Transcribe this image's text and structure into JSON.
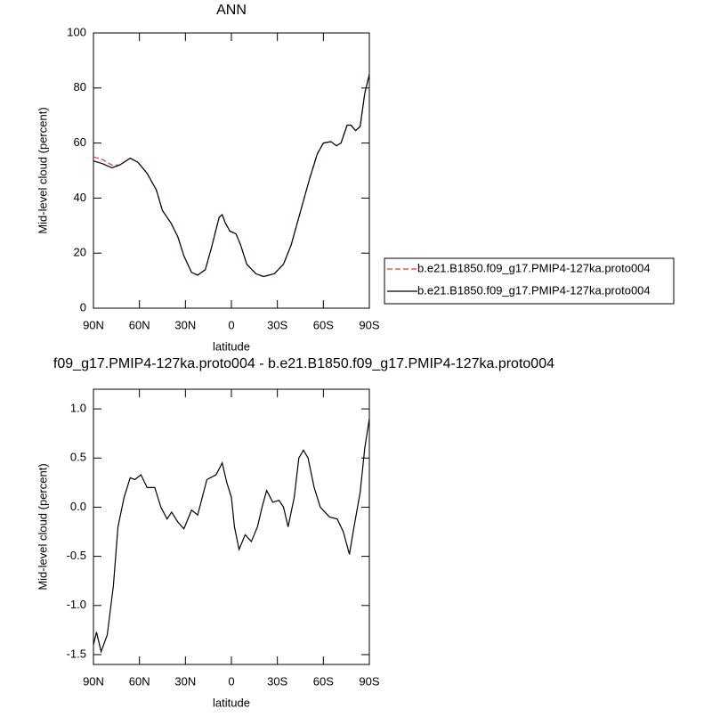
{
  "chart_data": [
    {
      "type": "line",
      "title": "ANN",
      "x_label": "latitude",
      "y_label": "Mid-level cloud (percent)",
      "x": [
        90,
        84,
        78,
        73,
        66,
        61,
        55,
        49,
        45,
        39.5,
        35,
        31,
        26,
        22,
        17,
        13,
        8,
        6,
        4,
        1,
        -3,
        -6,
        -10,
        -16,
        -21,
        -28,
        -34,
        -39,
        -45,
        -51,
        -56,
        -60,
        -65,
        -68.5,
        -71.5,
        -75.5,
        -78,
        -81,
        -84,
        -87,
        -90
      ],
      "series": [
        {
          "name": "b.e21.B1850.f09_g17.PMIP4-127ka.proto004",
          "color": "#e03a3a",
          "dashed": true,
          "values": [
            55,
            54,
            52,
            52,
            54.5,
            53,
            49,
            43,
            35.5,
            31,
            26,
            19,
            13,
            12,
            14,
            22,
            33,
            34,
            31,
            28,
            27,
            23,
            16,
            12.5,
            11.5,
            12.5,
            16,
            23,
            35,
            47,
            56,
            60,
            60.5,
            59,
            60,
            66.5,
            66.5,
            64.5,
            66,
            78,
            85
          ]
        },
        {
          "name": "b.e21.B1850.f09_g17.PMIP4-127ka.proto004",
          "color": "#000000",
          "dashed": false,
          "values": [
            53.5,
            52.5,
            51,
            52,
            54.5,
            53,
            49,
            43,
            35.5,
            31,
            26,
            19,
            13,
            12,
            14,
            22,
            33,
            34,
            31,
            28,
            27,
            23,
            16,
            12.5,
            11.5,
            12.5,
            16,
            23,
            35,
            47,
            56,
            60,
            60.5,
            59,
            60,
            66.5,
            66.5,
            64.5,
            66,
            78,
            85
          ]
        }
      ],
      "xlim": [
        90,
        -90
      ],
      "xticks": [
        {
          "value": 90,
          "label": "90N"
        },
        {
          "value": 60,
          "label": "60N"
        },
        {
          "value": 30,
          "label": "30N"
        },
        0,
        {
          "value": -30,
          "label": "30S"
        },
        {
          "value": -60,
          "label": "60S"
        },
        {
          "value": -90,
          "label": "90S"
        }
      ],
      "ylim": [
        0,
        100
      ],
      "yticks": [
        0,
        20,
        40,
        60,
        80,
        100
      ],
      "legend": "right"
    },
    {
      "type": "line",
      "title": "f09_g17.PMIP4-127ka.proto004 - b.e21.B1850.f09_g17.PMIP4-127ka.proto004",
      "x_label": "latitude",
      "y_label": "Mid-level cloud (percent)",
      "x": [
        90,
        88,
        85,
        81,
        77,
        74,
        70,
        66,
        63,
        59,
        55,
        50,
        46,
        42,
        39,
        35,
        31,
        26,
        22,
        16,
        10,
        6,
        3,
        0,
        -2,
        -5,
        -9,
        -13,
        -17,
        -20,
        -23,
        -27,
        -31,
        -34,
        -37,
        -41,
        -44,
        -47,
        -50,
        -54,
        -58,
        -64,
        -69,
        -73,
        -77,
        -80,
        -84,
        -87,
        -90
      ],
      "values": [
        -1.4,
        -1.27,
        -1.47,
        -1.3,
        -0.8,
        -0.2,
        0.1,
        0.3,
        0.28,
        0.33,
        0.2,
        0.2,
        0.0,
        -0.12,
        -0.05,
        -0.15,
        -0.22,
        -0.03,
        -0.08,
        0.28,
        0.33,
        0.45,
        0.25,
        0.1,
        -0.2,
        -0.43,
        -0.28,
        -0.35,
        -0.2,
        0.0,
        0.17,
        0.05,
        0.07,
        0.0,
        -0.2,
        0.1,
        0.5,
        0.58,
        0.5,
        0.2,
        0.0,
        -0.1,
        -0.12,
        -0.25,
        -0.48,
        -0.2,
        0.15,
        0.6,
        0.9
      ],
      "color": "#000000",
      "xlim": [
        90,
        -90
      ],
      "xticks": [
        {
          "value": 90,
          "label": "90N"
        },
        {
          "value": 60,
          "label": "60N"
        },
        {
          "value": 30,
          "label": "30N"
        },
        0,
        {
          "value": -30,
          "label": "30S"
        },
        {
          "value": -60,
          "label": "60S"
        },
        {
          "value": -90,
          "label": "90S"
        }
      ],
      "ylim": [
        -1.6,
        1.2
      ],
      "yticks": [
        {
          "value": -1.5,
          "label": "-1.5"
        },
        {
          "value": -1,
          "label": "-1.0"
        },
        {
          "value": -0.5,
          "label": "-0.5"
        },
        {
          "value": 0,
          "label": "0.0"
        },
        {
          "value": 0.5,
          "label": "0.5"
        },
        {
          "value": 1,
          "label": "1.0"
        }
      ]
    }
  ]
}
